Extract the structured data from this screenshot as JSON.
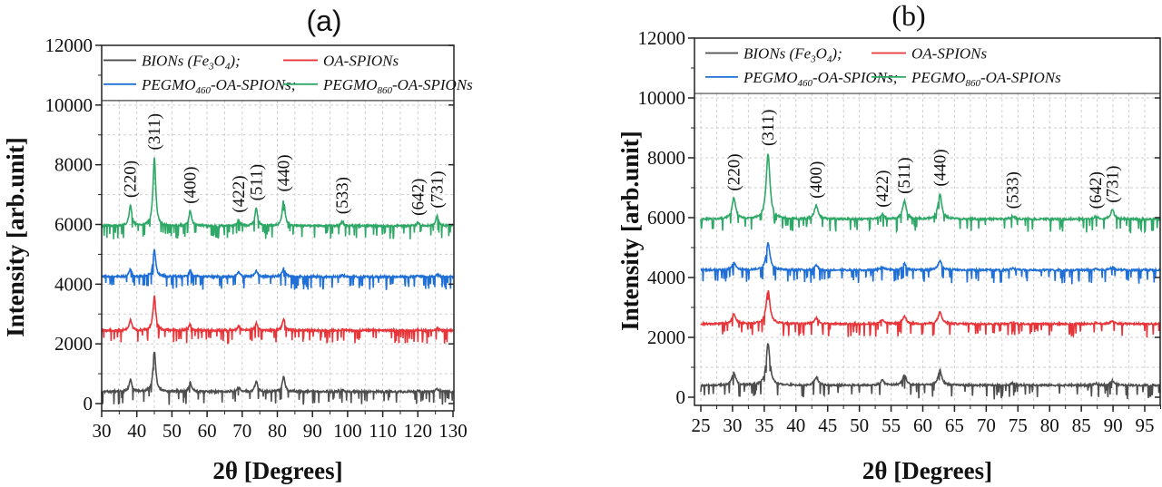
{
  "chart_data": [
    {
      "type": "line",
      "title": "(a)",
      "xlabel": "2θ [Degrees]",
      "ylabel": "Intensity [arb.unit]",
      "xlim": [
        30,
        130
      ],
      "ylim": [
        -250,
        12000
      ],
      "xticks": [
        "30",
        "40",
        "50",
        "60",
        "70",
        "80",
        "90",
        "100",
        "110",
        "120",
        "130"
      ],
      "yticks": [
        "0",
        "2000",
        "4000",
        "6000",
        "8000",
        "10000",
        "12000"
      ],
      "grid": true,
      "legend": "top",
      "peak_labels": [
        {
          "label": "(220)",
          "x": 38.2
        },
        {
          "label": "(311)",
          "x": 45.0
        },
        {
          "label": "(400)",
          "x": 55.2
        },
        {
          "label": "(422)",
          "x": 69.0
        },
        {
          "label": "(511)",
          "x": 74.0
        },
        {
          "label": "(440)",
          "x": 81.8
        },
        {
          "label": "(533)",
          "x": 98.5
        },
        {
          "label": "(642)",
          "x": 120.0
        },
        {
          "label": "(731)",
          "x": 125.5
        }
      ],
      "peak_positions": [
        38.2,
        45.0,
        55.2,
        69.0,
        74.0,
        81.8,
        98.5,
        120.0,
        125.5
      ],
      "series": [
        {
          "name": "BIONs (Fe3O4);",
          "color": "#4d4d4d",
          "baseline": 400,
          "peaks": [
            800,
            1800,
            700,
            550,
            750,
            900,
            450,
            420,
            500
          ]
        },
        {
          "name": "OA-SPIONs",
          "color": "#e8353a",
          "baseline": 2450,
          "peaks": [
            2800,
            3600,
            2650,
            2600,
            2700,
            2850,
            2500,
            2480,
            2520
          ]
        },
        {
          "name": "PEGMO460-OA-SPIONs;",
          "color": "#1f6fd6",
          "baseline": 4250,
          "peaks": [
            4500,
            5150,
            4450,
            4400,
            4450,
            4550,
            4300,
            4280,
            4320
          ]
        },
        {
          "name": "PEGMO860-OA-SPIONs",
          "color": "#2ea866",
          "baseline": 5950,
          "peaks": [
            6650,
            8250,
            6450,
            6150,
            6550,
            6850,
            6100,
            6050,
            6300
          ]
        }
      ]
    },
    {
      "type": "line",
      "title": "(b)",
      "xlabel": "2θ [Degrees]",
      "ylabel": "Intensity [arb.unit]",
      "xlim": [
        25,
        97.5
      ],
      "ylim": [
        -250,
        12000
      ],
      "xticks": [
        "25",
        "30",
        "35",
        "40",
        "45",
        "50",
        "55",
        "60",
        "65",
        "70",
        "75",
        "80",
        "85",
        "90",
        "95"
      ],
      "yticks": [
        "0",
        "2000",
        "4000",
        "6000",
        "8000",
        "10000",
        "12000"
      ],
      "grid": true,
      "legend": "top",
      "peak_labels": [
        {
          "label": "(220)",
          "x": 30.2
        },
        {
          "label": "(311)",
          "x": 35.6
        },
        {
          "label": "(400)",
          "x": 43.2
        },
        {
          "label": "(422)",
          "x": 53.6
        },
        {
          "label": "(511)",
          "x": 57.1
        },
        {
          "label": "(440)",
          "x": 62.7
        },
        {
          "label": "(533)",
          "x": 74.2
        },
        {
          "label": "(642)",
          "x": 87.3
        },
        {
          "label": "(731)",
          "x": 89.9
        }
      ],
      "peak_positions": [
        30.2,
        35.6,
        43.2,
        53.6,
        57.1,
        62.7,
        74.2,
        87.3,
        89.9
      ],
      "series": [
        {
          "name": "BIONs (Fe3O4);",
          "color": "#4d4d4d",
          "baseline": 400,
          "peaks": [
            820,
            1800,
            680,
            560,
            740,
            900,
            470,
            450,
            560
          ]
        },
        {
          "name": "OA-SPIONs",
          "color": "#e8353a",
          "baseline": 2450,
          "peaks": [
            2780,
            3600,
            2650,
            2600,
            2700,
            2830,
            2500,
            2480,
            2550
          ]
        },
        {
          "name": "PEGMO460-OA-SPIONs;",
          "color": "#1f6fd6",
          "baseline": 4250,
          "peaks": [
            4500,
            5150,
            4400,
            4350,
            4450,
            4550,
            4300,
            4280,
            4350
          ]
        },
        {
          "name": "PEGMO860-OA-SPIONs",
          "color": "#2ea866",
          "baseline": 5950,
          "peaks": [
            6650,
            8150,
            6400,
            6100,
            6550,
            6800,
            6050,
            6050,
            6250
          ]
        }
      ]
    }
  ],
  "legend_labels": {
    "bions_main": "BIONs (Fe",
    "bions_sub3": "3",
    "bions_o": "O",
    "bions_sub4": "4",
    "bions_end": ");",
    "oa": "OA-SPIONs",
    "peg460_main": "PEGMO",
    "peg460_sub": "460",
    "peg460_end": "-OA-SPIONs;",
    "peg860_main": "PEGMO",
    "peg860_sub": "860",
    "peg860_end": "-OA-SPIONs"
  }
}
